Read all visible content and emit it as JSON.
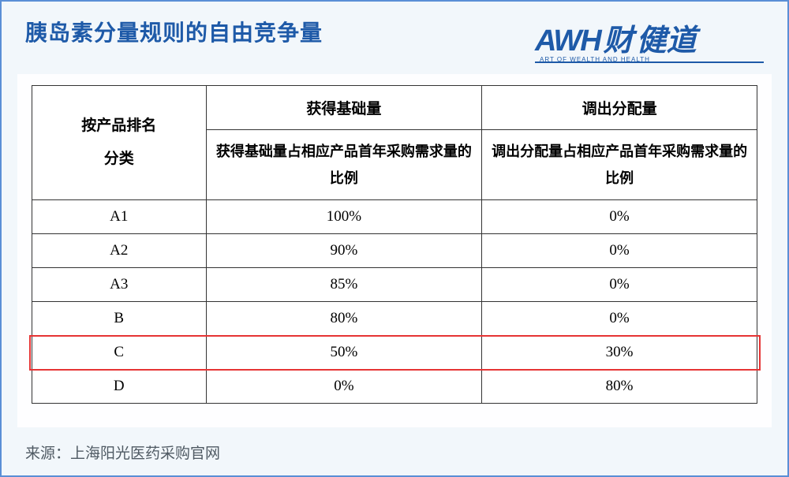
{
  "title": "胰岛素分量规则的自由竞争量",
  "logo": {
    "awh": "AWH",
    "cn1": "财",
    "cn2": "健道",
    "sub": "ART OF WEALTH AND HEALTH"
  },
  "table": {
    "row_header_line1": "按产品排名",
    "row_header_line2": "分类",
    "col1_title": "获得基础量",
    "col1_sub": "获得基础量占相应产品首年采购需求量的比例",
    "col2_title": "调出分配量",
    "col2_sub": "调出分配量占相应产品首年采购需求量的比例",
    "rows": [
      {
        "cat": "A1",
        "v1": "100%",
        "v2": "0%"
      },
      {
        "cat": "A2",
        "v1": "90%",
        "v2": "0%"
      },
      {
        "cat": "A3",
        "v1": "85%",
        "v2": "0%"
      },
      {
        "cat": "B",
        "v1": "80%",
        "v2": "0%"
      },
      {
        "cat": "C",
        "v1": "50%",
        "v2": "30%"
      },
      {
        "cat": "D",
        "v1": "0%",
        "v2": "80%"
      }
    ],
    "highlight_row_index": 4
  },
  "source_label": "来源：",
  "source_text": "上海阳光医药采购官网",
  "colors": {
    "frame": "#5a8fd6",
    "bg": "#f2f7fb",
    "title": "#1e5aa8",
    "table_border": "#333333",
    "highlight": "#e63434",
    "source": "#4f5a63"
  }
}
